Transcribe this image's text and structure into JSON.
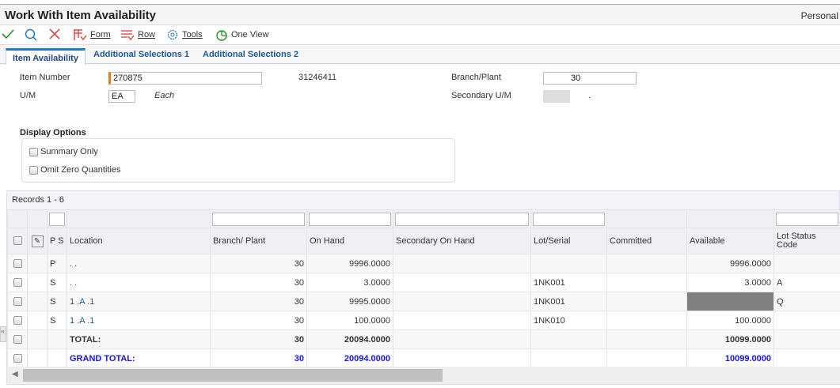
{
  "window": {
    "title": "Work With Item Availability",
    "personalize": "Personal"
  },
  "toolbar": {
    "ok": "check-icon",
    "find": "search-icon",
    "cancel": "close-icon",
    "form": "Form",
    "row": "Row",
    "tools": "Tools",
    "one_view": "One View"
  },
  "tabs": [
    {
      "label": "Item Availability",
      "active": true
    },
    {
      "label": "Additional Selections 1"
    },
    {
      "label": "Additional Selections 2"
    }
  ],
  "header": {
    "item_number_label": "Item Number",
    "item_number": "270875",
    "short_item": "31246411",
    "um_label": "U/M",
    "um": "EA",
    "um_desc": "Each",
    "branch_label": "Branch/Plant",
    "branch": "30",
    "secondary_um_label": "Secondary U/M",
    "secondary_um_desc": "."
  },
  "display_options": {
    "title": "Display Options",
    "summary_only": "Summary Only",
    "omit_zero": "Omit Zero Quantities"
  },
  "grid": {
    "records": "Records 1 - 6",
    "columns": [
      "P S",
      "Location",
      "Branch/ Plant",
      "On Hand",
      "Secondary On Hand",
      "Lot/Serial",
      "Committed",
      "Available",
      "Lot Status Code"
    ],
    "rows": [
      {
        "ps": "P",
        "location": ".  .",
        "branch": "30",
        "on_hand": "9996.0000",
        "sec": "",
        "lot": "",
        "committed": "",
        "available": "9996.0000",
        "status": ""
      },
      {
        "ps": "S",
        "location": ".  .",
        "branch": "30",
        "on_hand": "3.0000",
        "sec": "",
        "lot": "1NK001",
        "committed": "",
        "available": "3.0000",
        "status": "A"
      },
      {
        "ps": "S",
        "location": "1 .A  .1",
        "branch": "30",
        "on_hand": "9995.0000",
        "sec": "",
        "lot": "1NK001",
        "committed": "",
        "available": "",
        "status": "Q"
      },
      {
        "ps": "S",
        "location": "1 .A  .1",
        "branch": "30",
        "on_hand": "100.0000",
        "sec": "",
        "lot": "1NK010",
        "committed": "",
        "available": "100.0000",
        "status": ""
      },
      {
        "ps": "",
        "location": "TOTAL:",
        "branch": "30",
        "on_hand": "20094.0000",
        "sec": "",
        "lot": "",
        "committed": "",
        "available": "10099.0000",
        "status": ""
      },
      {
        "ps": "",
        "location": "GRAND TOTAL:",
        "branch": "30",
        "on_hand": "20094.0000",
        "sec": "",
        "lot": "",
        "committed": "",
        "available": "10099.0000",
        "status": ""
      }
    ]
  }
}
